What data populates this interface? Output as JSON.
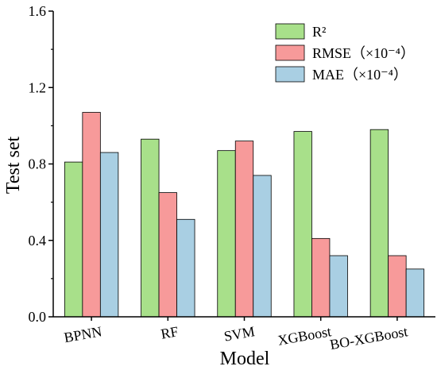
{
  "chart_data": {
    "type": "bar",
    "xlabel": "Model",
    "ylabel": "Test set",
    "ylim": [
      0.0,
      1.6
    ],
    "yticks": [
      "0.0",
      "0.4",
      "0.8",
      "1.2",
      "1.6"
    ],
    "categories": [
      "BPNN",
      "RF",
      "SVM",
      "XGBoost",
      "BO-XGBoost"
    ],
    "series": [
      {
        "name": "R²",
        "color": "#a8e08a",
        "values": [
          0.81,
          0.93,
          0.87,
          0.97,
          0.98
        ]
      },
      {
        "name": "RMSE（×10⁻⁴）",
        "color": "#f79a9a",
        "values": [
          1.07,
          0.65,
          0.92,
          0.41,
          0.32
        ]
      },
      {
        "name": "MAE（×10⁻⁴）",
        "color": "#a9cfe3",
        "values": [
          0.86,
          0.51,
          0.74,
          0.32,
          0.25
        ]
      }
    ],
    "legend_position": "top-right",
    "grid": false
  }
}
